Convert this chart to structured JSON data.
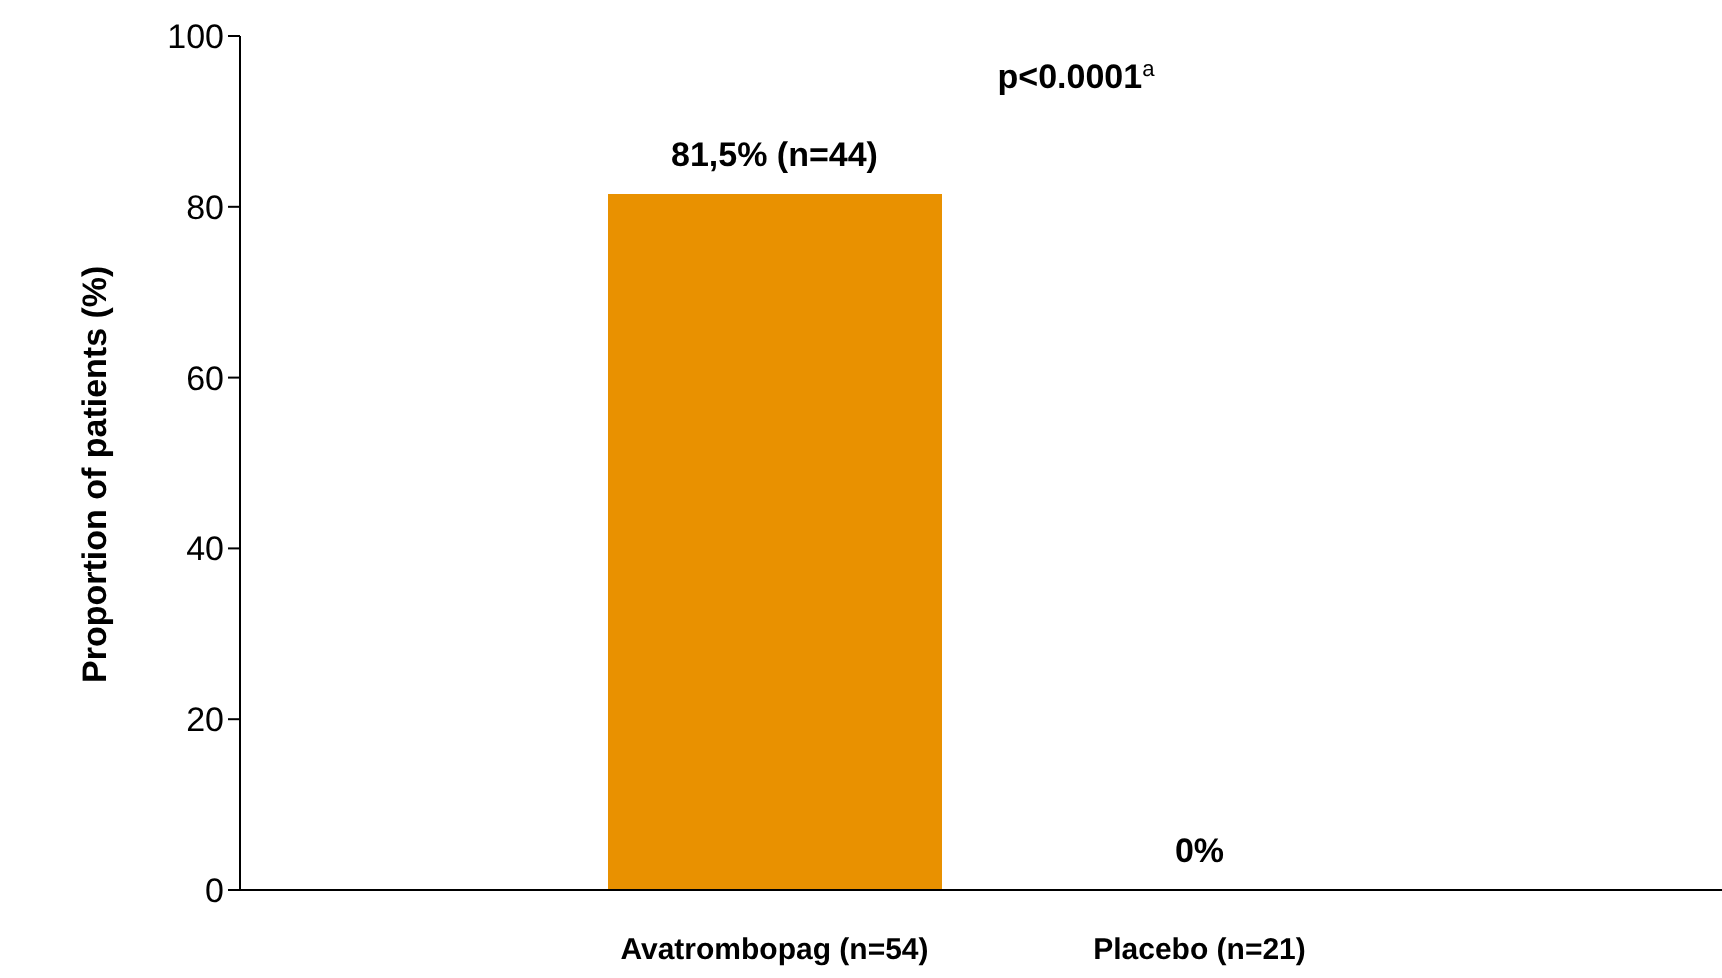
{
  "chart_data": {
    "type": "bar",
    "ylabel": "Proportion of patients (%)",
    "categories": [
      "Avatrombopag (n=54)",
      "Placebo (n=21)"
    ],
    "values": [
      81.5,
      0
    ],
    "color": "#e99100",
    "value_labels": [
      "81,5% (n=44)",
      "0%"
    ],
    "annotations": [
      "p<0.0001$^{a}$"
    ],
    "ylim": [
      0,
      100
    ],
    "yticks": [
      0,
      20,
      40,
      60,
      80,
      100
    ],
    "grid": false
  }
}
